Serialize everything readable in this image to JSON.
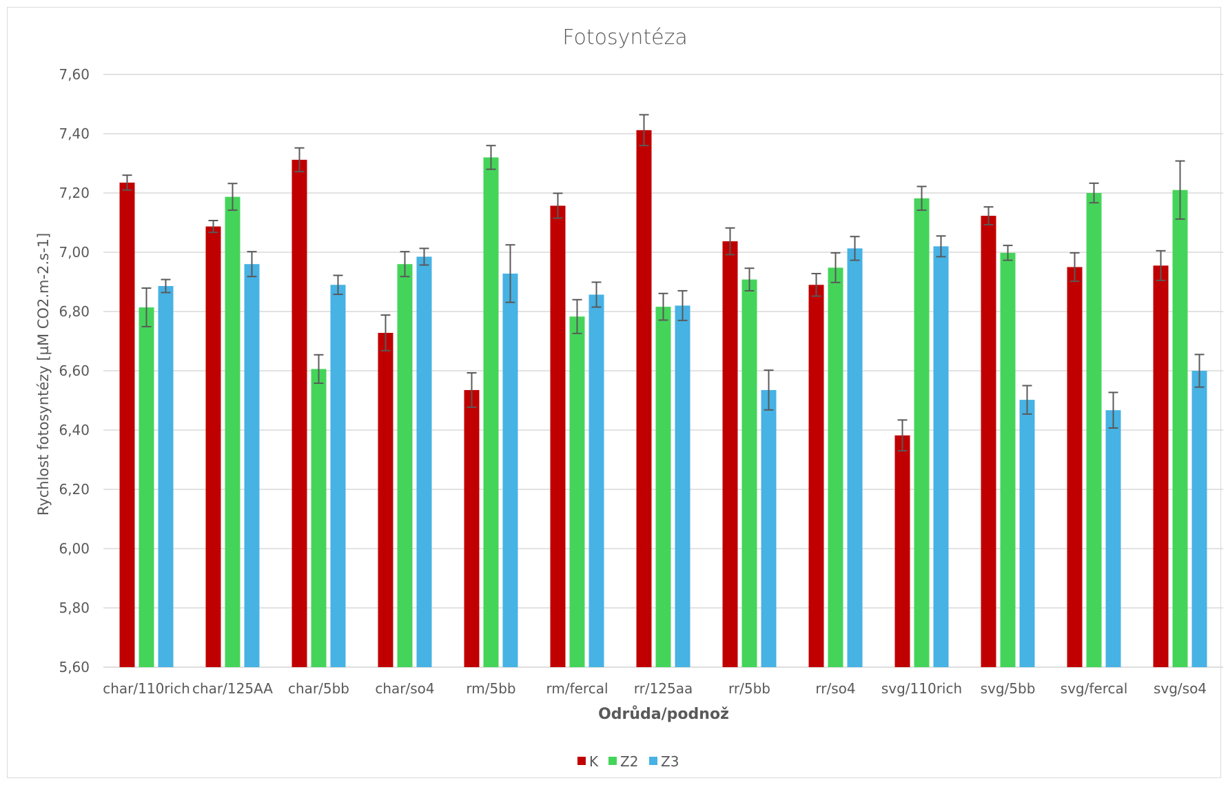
{
  "chart_data": {
    "type": "bar",
    "title": "Fotosyntéza",
    "xlabel": "Odrůda/podnož",
    "ylabel": "Rychlost fotosyntézy [µM CO2.m-2.s-1]",
    "ylim": [
      5.6,
      7.6
    ],
    "ytick_step": 0.2,
    "ytick_labels": [
      "5,60",
      "5,80",
      "6,00",
      "6,20",
      "6,40",
      "6,60",
      "6,80",
      "7,00",
      "7,20",
      "7,40",
      "7,60"
    ],
    "grid": true,
    "legend_position": "bottom",
    "categories": [
      "char/110rich",
      "char/125AA",
      "char/5bb",
      "char/so4",
      "rm/5bb",
      "rm/fercal",
      "rr/125aa",
      "rr/5bb",
      "rr/so4",
      "svg/110rich",
      "svg/5bb",
      "svg/fercal",
      "svg/so4"
    ],
    "series": [
      {
        "name": "K",
        "color": "#c00000",
        "values": [
          7.235,
          7.087,
          7.312,
          6.728,
          6.535,
          7.157,
          7.412,
          7.037,
          6.89,
          6.382,
          7.123,
          6.95,
          6.955
        ],
        "errors": [
          0.025,
          0.02,
          0.04,
          0.06,
          0.058,
          0.042,
          0.052,
          0.045,
          0.038,
          0.052,
          0.03,
          0.048,
          0.05
        ]
      },
      {
        "name": "Z2",
        "color": "#45d45a",
        "values": [
          6.814,
          7.187,
          6.606,
          6.96,
          7.32,
          6.783,
          6.816,
          6.908,
          6.948,
          7.182,
          6.998,
          7.2,
          7.21
        ],
        "errors": [
          0.065,
          0.045,
          0.048,
          0.042,
          0.04,
          0.057,
          0.045,
          0.038,
          0.05,
          0.04,
          0.025,
          0.033,
          0.098
        ]
      },
      {
        "name": "Z3",
        "color": "#47b2e4",
        "values": [
          6.886,
          6.96,
          6.89,
          6.985,
          6.928,
          6.857,
          6.82,
          6.535,
          7.013,
          7.02,
          6.502,
          6.467,
          6.6
        ],
        "errors": [
          0.022,
          0.042,
          0.032,
          0.028,
          0.097,
          0.042,
          0.05,
          0.067,
          0.04,
          0.035,
          0.048,
          0.06,
          0.055
        ]
      }
    ]
  }
}
